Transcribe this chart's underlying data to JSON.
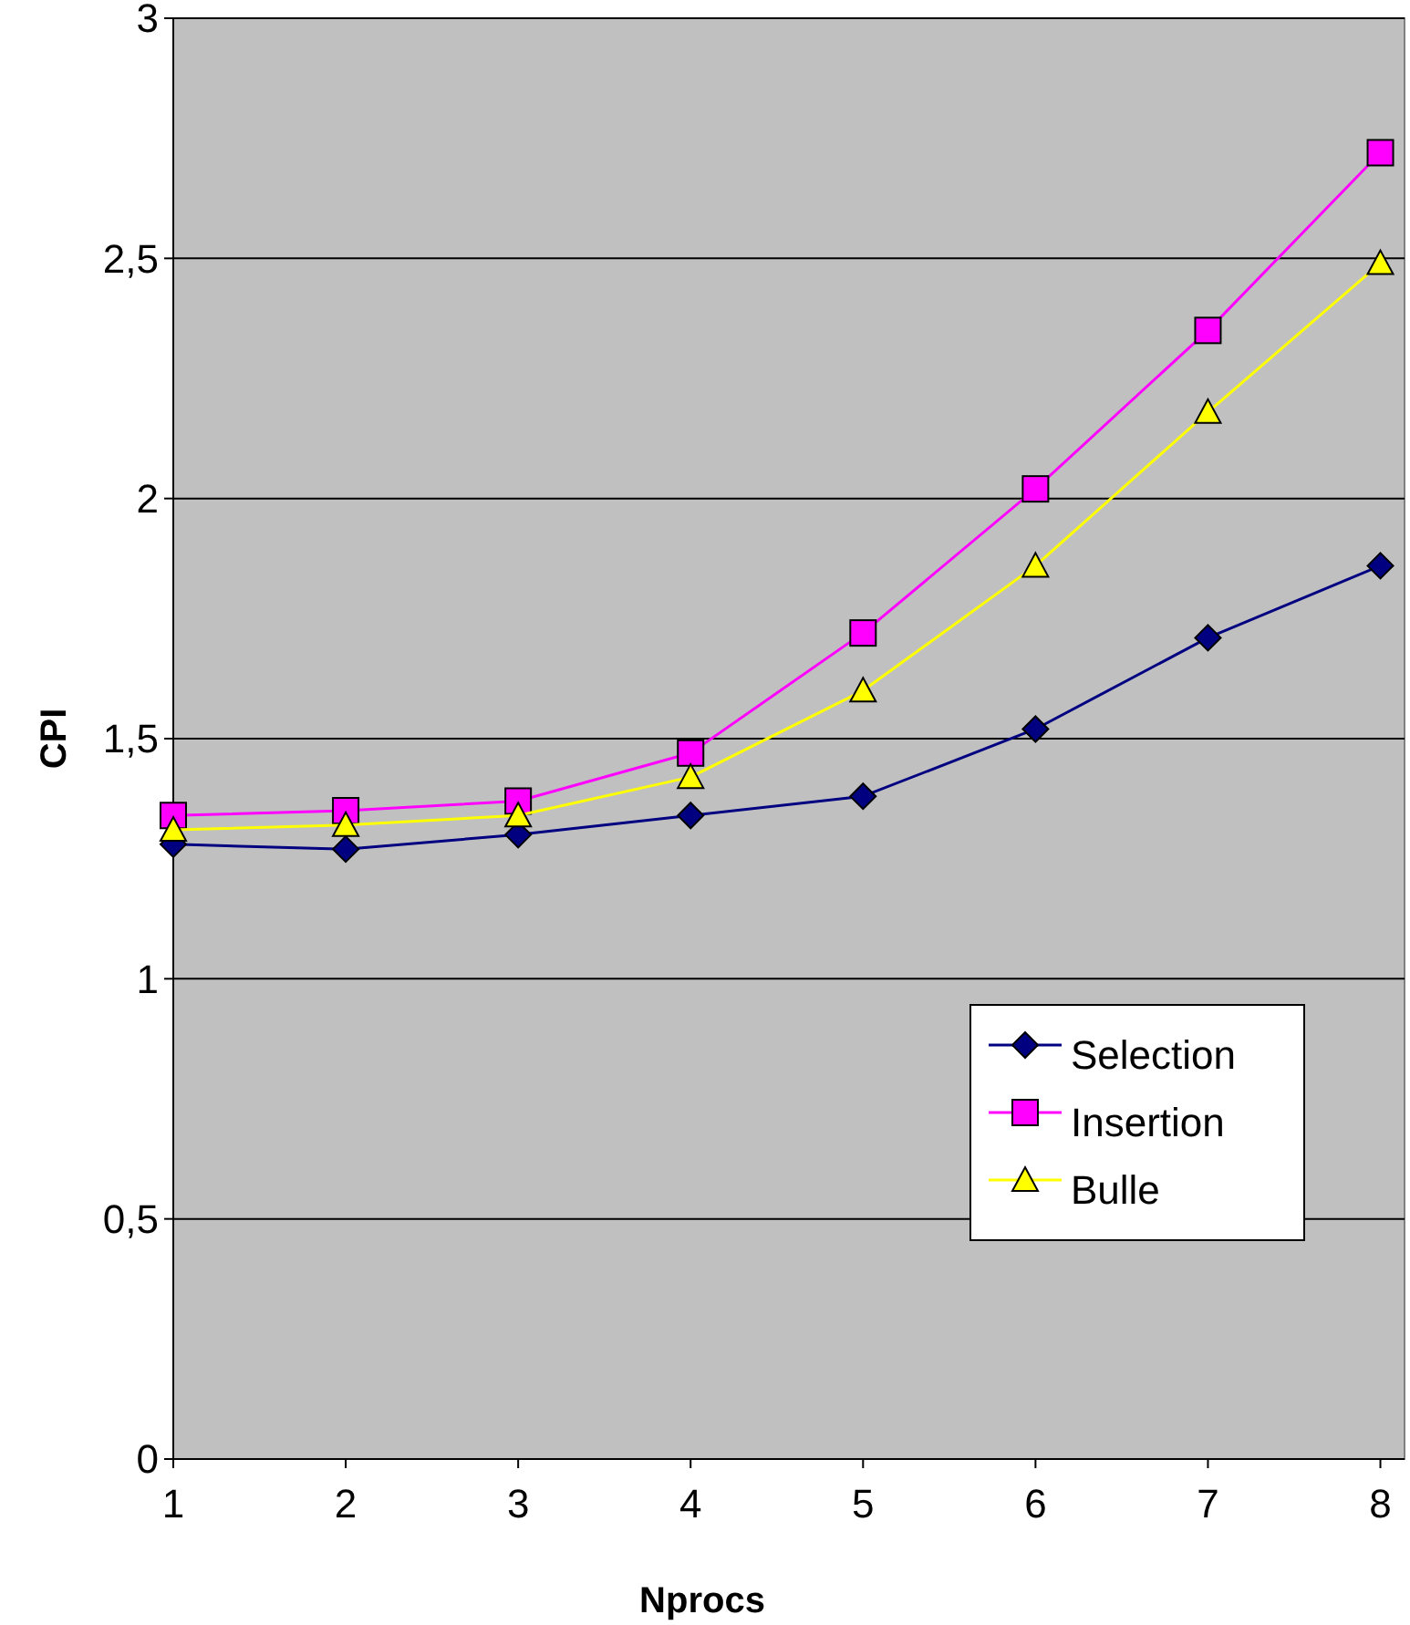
{
  "chart_data": {
    "type": "line",
    "xlabel": "Nprocs",
    "ylabel": "CPI",
    "x": [
      1,
      2,
      3,
      4,
      5,
      6,
      7,
      8
    ],
    "xlim": [
      1,
      8.14
    ],
    "xticks": [
      1,
      2,
      3,
      4,
      5,
      6,
      7,
      8
    ],
    "ylim": [
      0,
      3
    ],
    "yticks": [
      0,
      {
        "value": 0.5,
        "label": "0,5"
      },
      1,
      {
        "value": 1.5,
        "label": "1,5"
      },
      2,
      {
        "value": 2.5,
        "label": "2,5"
      },
      3
    ],
    "grid": "y",
    "legend": "bottom right",
    "series": [
      {
        "name": "Selection",
        "color": "#000080",
        "marker": "diamond",
        "values": [
          1.28,
          1.27,
          1.3,
          1.34,
          1.38,
          1.52,
          1.71,
          1.86
        ]
      },
      {
        "name": "Insertion",
        "color": "#ff00ff",
        "marker": "square",
        "values": [
          1.34,
          1.35,
          1.37,
          1.47,
          1.72,
          2.02,
          2.35,
          2.72
        ]
      },
      {
        "name": "Bulle",
        "color": "#ffff00",
        "marker": "triangle",
        "values": [
          1.31,
          1.32,
          1.34,
          1.42,
          1.6,
          1.86,
          2.18,
          2.49
        ]
      }
    ]
  }
}
